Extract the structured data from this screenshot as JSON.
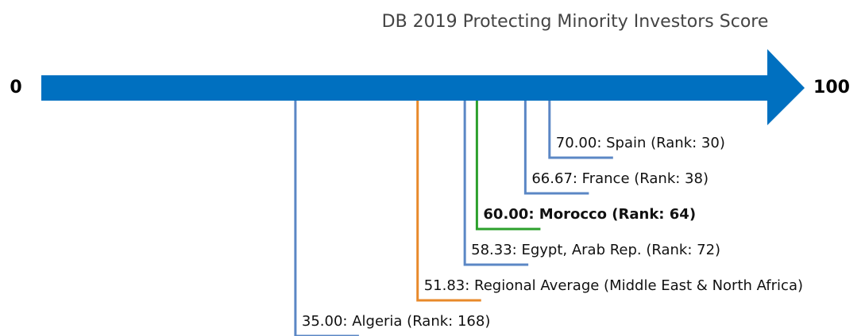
{
  "chart_data": {
    "type": "numberline",
    "title": "DB 2019 Protecting Minority Investors Score",
    "xlim": [
      0,
      100
    ],
    "xticks": [
      0,
      100
    ],
    "axis_color": "#0070c0",
    "values": [
      70,
      66.67,
      60,
      58.33,
      51.83,
      35
    ],
    "value_labels": [
      "70.00: Spain (Rank: 30)",
      "66.67: France (Rank: 38)",
      "60.00: Morocco (Rank: 64)",
      "58.33: Egypt, Arab Rep. (Rank: 72)",
      "51.83: Regional Average (Middle East & North Africa)",
      "35.00: Algeria (Rank: 168)"
    ],
    "colors": [
      "#5b87c5",
      "#5b87c5",
      "#2ca02c",
      "#5b87c5",
      "#e8892a",
      "#5b87c5"
    ],
    "highlight": 2
  }
}
